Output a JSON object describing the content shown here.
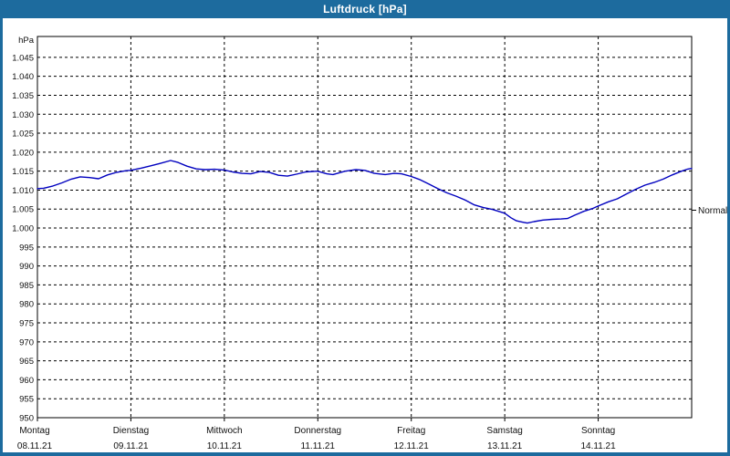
{
  "window": {
    "title": "Luftdruck [hPa]"
  },
  "colors": {
    "titlebar": "#1d6b9e",
    "window_border": "#1d6b9e",
    "plot_background": "#ffffff",
    "grid": "#000000",
    "frame": "#000000",
    "line": "#0000bf",
    "text": "#111111",
    "title_text": "#ffffff"
  },
  "chart_data": {
    "type": "line",
    "title": "Luftdruck [hPa]",
    "unit_label": "hPa",
    "grid": true,
    "ylim": [
      950,
      1050.5
    ],
    "y_ticks": [
      {
        "label": "1.045",
        "value": 1045
      },
      {
        "label": "1.040",
        "value": 1040
      },
      {
        "label": "1.035",
        "value": 1035
      },
      {
        "label": "1.030",
        "value": 1030
      },
      {
        "label": "1.025",
        "value": 1025
      },
      {
        "label": "1.020",
        "value": 1020
      },
      {
        "label": "1.015",
        "value": 1015
      },
      {
        "label": "1.010",
        "value": 1010
      },
      {
        "label": "1.005",
        "value": 1005
      },
      {
        "label": "1.000",
        "value": 1000
      },
      {
        "label": "995",
        "value": 995
      },
      {
        "label": "990",
        "value": 990
      },
      {
        "label": "985",
        "value": 985
      },
      {
        "label": "980",
        "value": 980
      },
      {
        "label": "975",
        "value": 975
      },
      {
        "label": "970",
        "value": 970
      },
      {
        "label": "965",
        "value": 965
      },
      {
        "label": "960",
        "value": 960
      },
      {
        "label": "955",
        "value": 955
      },
      {
        "label": "950",
        "value": 950
      }
    ],
    "x_days": [
      {
        "name": "Montag",
        "date": "08.11.21"
      },
      {
        "name": "Dienstag",
        "date": "09.11.21"
      },
      {
        "name": "Mittwoch",
        "date": "10.11.21"
      },
      {
        "name": "Donnerstag",
        "date": "11.11.21"
      },
      {
        "name": "Freitag",
        "date": "12.11.21"
      },
      {
        "name": "Samstag",
        "date": "13.11.21"
      },
      {
        "name": "Sonntag",
        "date": "14.11.21"
      }
    ],
    "x_hours_total": 168,
    "normal_marker": {
      "label": "Normal",
      "value": 1004.7
    },
    "series": {
      "points": [
        [
          0.0,
          1010.4
        ],
        [
          1.6,
          1010.5
        ],
        [
          4.0,
          1011.1
        ],
        [
          6.3,
          1011.9
        ],
        [
          8.7,
          1012.9
        ],
        [
          11.0,
          1013.5
        ],
        [
          13.4,
          1013.3
        ],
        [
          15.7,
          1013.0
        ],
        [
          18.0,
          1014.0
        ],
        [
          20.4,
          1014.7
        ],
        [
          22.7,
          1015.1
        ],
        [
          23.9,
          1015.2
        ],
        [
          26.7,
          1015.8
        ],
        [
          29.1,
          1016.4
        ],
        [
          31.4,
          1017.0
        ],
        [
          34.2,
          1017.8
        ],
        [
          36.1,
          1017.3
        ],
        [
          38.4,
          1016.3
        ],
        [
          40.8,
          1015.6
        ],
        [
          43.1,
          1015.4
        ],
        [
          45.5,
          1015.5
        ],
        [
          48.0,
          1015.3
        ],
        [
          50.1,
          1014.8
        ],
        [
          52.5,
          1014.4
        ],
        [
          54.8,
          1014.3
        ],
        [
          57.2,
          1014.9
        ],
        [
          59.5,
          1014.7
        ],
        [
          61.9,
          1013.9
        ],
        [
          64.2,
          1013.7
        ],
        [
          66.5,
          1014.2
        ],
        [
          68.9,
          1014.8
        ],
        [
          71.9,
          1015.0
        ],
        [
          74.3,
          1014.3
        ],
        [
          75.9,
          1014.1
        ],
        [
          79.0,
          1015.0
        ],
        [
          81.8,
          1015.4
        ],
        [
          84.1,
          1015.2
        ],
        [
          86.5,
          1014.4
        ],
        [
          89.3,
          1014.1
        ],
        [
          91.6,
          1014.4
        ],
        [
          93.5,
          1014.3
        ],
        [
          96.0,
          1013.6
        ],
        [
          98.1,
          1012.8
        ],
        [
          100.5,
          1011.6
        ],
        [
          102.8,
          1010.4
        ],
        [
          105.1,
          1009.3
        ],
        [
          107.5,
          1008.4
        ],
        [
          109.8,
          1007.4
        ],
        [
          112.2,
          1006.1
        ],
        [
          114.5,
          1005.4
        ],
        [
          116.9,
          1004.9
        ],
        [
          120.0,
          1003.9
        ],
        [
          121.6,
          1002.7
        ],
        [
          123.0,
          1001.9
        ],
        [
          124.4,
          1001.6
        ],
        [
          125.8,
          1001.3
        ],
        [
          127.5,
          1001.7
        ],
        [
          129.8,
          1002.1
        ],
        [
          132.2,
          1002.3
        ],
        [
          134.5,
          1002.4
        ],
        [
          136.1,
          1002.5
        ],
        [
          138.0,
          1003.4
        ],
        [
          140.3,
          1004.4
        ],
        [
          142.7,
          1005.2
        ],
        [
          144.0,
          1005.8
        ],
        [
          146.6,
          1006.9
        ],
        [
          148.9,
          1007.7
        ],
        [
          151.3,
          1009.0
        ],
        [
          153.6,
          1010.2
        ],
        [
          156.0,
          1011.3
        ],
        [
          158.3,
          1012.0
        ],
        [
          160.7,
          1012.9
        ],
        [
          163.0,
          1014.0
        ],
        [
          165.4,
          1015.0
        ],
        [
          166.8,
          1015.5
        ],
        [
          168.0,
          1015.7
        ]
      ]
    }
  }
}
